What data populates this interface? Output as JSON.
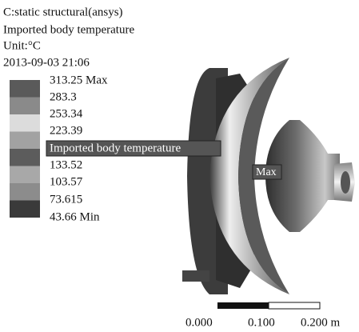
{
  "header": {
    "lines": [
      "C:static structural(ansys)",
      "Imported body temperature",
      "Unit:°C",
      "2013-09-03 21:06"
    ]
  },
  "legend": {
    "labels": [
      "313.25 Max",
      "283.3",
      "253.34",
      "223.39",
      "133.52",
      "103.57",
      "73.615",
      "43.66 Min"
    ]
  },
  "annotation": {
    "tag": "Imported body temperature",
    "probe": "Max"
  },
  "scale_bar": {
    "labels": [
      "0.000",
      "0.100",
      "0.200 m"
    ]
  }
}
